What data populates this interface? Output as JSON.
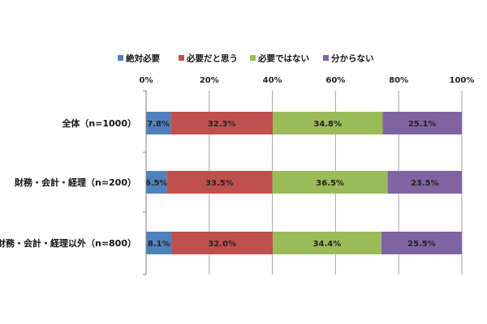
{
  "chart_data": {
    "type": "bar",
    "orientation": "horizontal",
    "stacked": true,
    "percent_stacked": true,
    "categories": [
      "全体（n=1000）",
      "財務・会計・経理（n=200）",
      "財務・会計・経理以外（n=800）"
    ],
    "series": [
      {
        "name": "絶対必要",
        "color": "#4f81bd",
        "values": [
          7.8,
          6.5,
          8.1
        ],
        "labels": [
          "7.8%",
          "6.5%",
          "8.1%"
        ]
      },
      {
        "name": "必要だと思う",
        "color": "#c0504d",
        "values": [
          32.3,
          33.5,
          32.0
        ],
        "labels": [
          "32.3%",
          "33.5%",
          "32.0%"
        ]
      },
      {
        "name": "必要ではない",
        "color": "#9bbb59",
        "values": [
          34.8,
          36.5,
          34.4
        ],
        "labels": [
          "34.8%",
          "36.5%",
          "34.4%"
        ]
      },
      {
        "name": "分からない",
        "color": "#8064a2",
        "values": [
          25.1,
          23.5,
          25.5
        ],
        "labels": [
          "25.1%",
          "23.5%",
          "25.5%"
        ]
      }
    ],
    "xlim": [
      0,
      100
    ],
    "xticks": [
      "0%",
      "20%",
      "40%",
      "60%",
      "80%",
      "100%"
    ],
    "grid": true,
    "legend_position": "top"
  }
}
